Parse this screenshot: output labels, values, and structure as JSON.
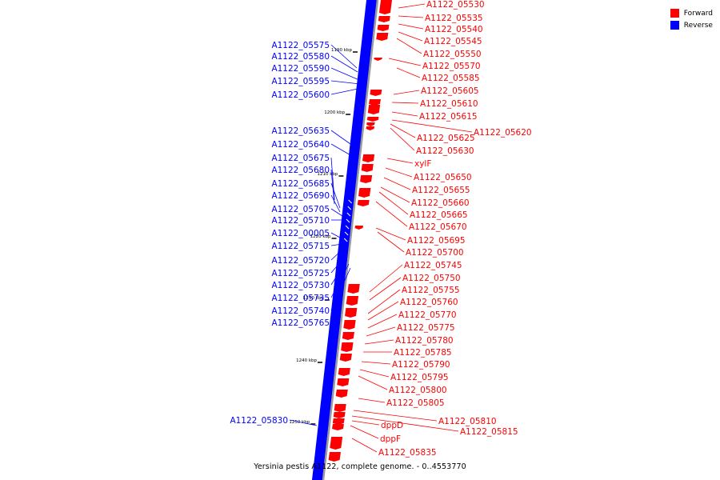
{
  "legend": {
    "forward_label": "Forward",
    "reverse_label": "Reverse",
    "forward_color": "#ff0000",
    "reverse_color": "#0000ff"
  },
  "caption": "Yersinia pestis A1122, complete genome. - 0..4553770",
  "ticks": [
    {
      "label": "1190 kbp"
    },
    {
      "label": "1200 kbp"
    },
    {
      "label": "1210 kbp"
    },
    {
      "label": "1220 kbp"
    },
    {
      "label": "1230 kbp"
    },
    {
      "label": "1240 kbp"
    },
    {
      "label": "1250 kbp"
    }
  ],
  "reverse_genes": [
    "A1122_05575",
    "A1122_05580",
    "A1122_05590",
    "A1122_05595",
    "A1122_05600",
    "A1122_05635",
    "A1122_05640",
    "A1122_05675",
    "A1122_05680",
    "A1122_05685",
    "A1122_05690",
    "A1122_05705",
    "A1122_05710",
    "A1122_00005",
    "A1122_05715",
    "A1122_05720",
    "A1122_05725",
    "A1122_05730",
    "A1122_05735",
    "A1122_05740",
    "A1122_05765",
    "A1122_05830"
  ],
  "forward_genes": [
    "A1122_05530",
    "A1122_05535",
    "A1122_05540",
    "A1122_05545",
    "A1122_05550",
    "A1122_05570",
    "A1122_05585",
    "A1122_05605",
    "A1122_05610",
    "A1122_05615",
    "A1122_05620",
    "A1122_05625",
    "A1122_05630",
    "xylF",
    "A1122_05650",
    "A1122_05655",
    "A1122_05660",
    "A1122_05665",
    "A1122_05670",
    "A1122_05695",
    "A1122_05700",
    "A1122_05745",
    "A1122_05750",
    "A1122_05755",
    "A1122_05760",
    "A1122_05770",
    "A1122_05775",
    "A1122_05780",
    "A1122_05785",
    "A1122_05790",
    "A1122_05795",
    "A1122_05800",
    "A1122_05805",
    "A1122_05810",
    "A1122_05815",
    "dppD",
    "dppF",
    "A1122_05835"
  ]
}
